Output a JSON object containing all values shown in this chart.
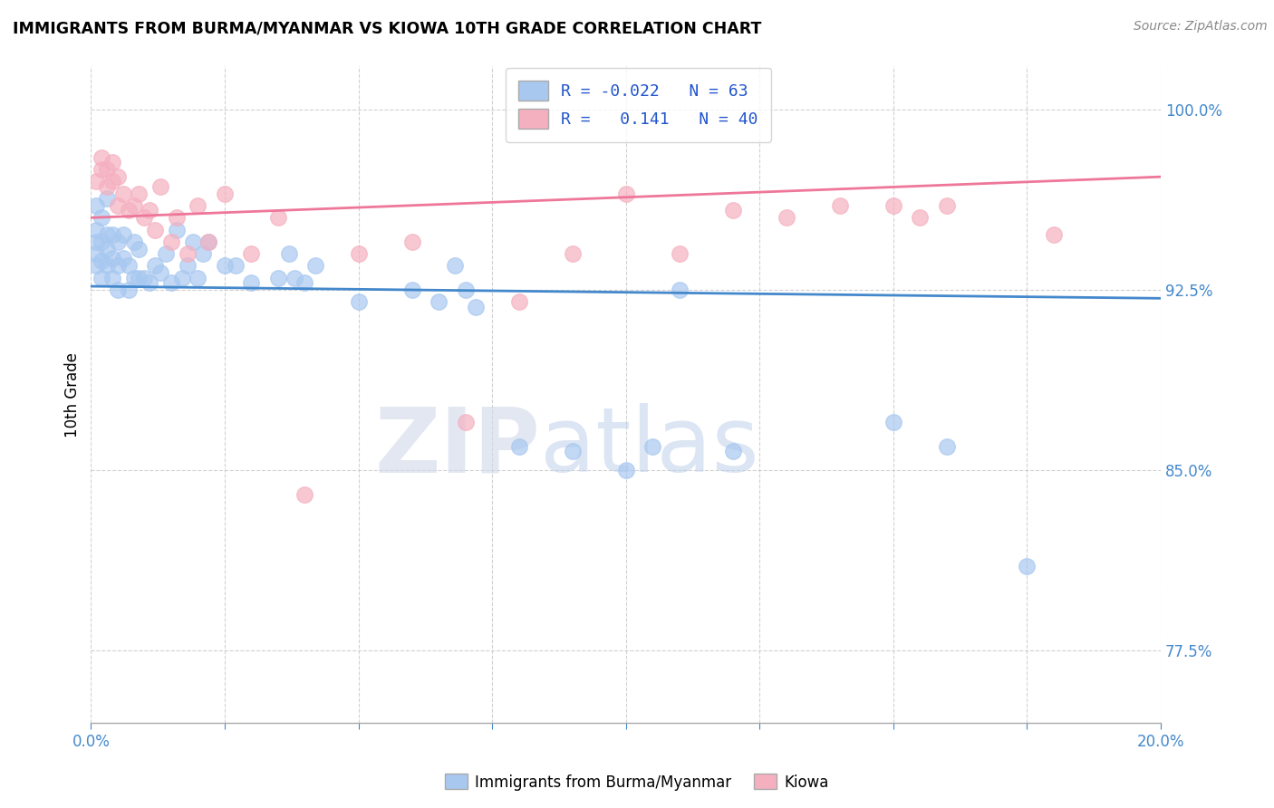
{
  "title": "IMMIGRANTS FROM BURMA/MYANMAR VS KIOWA 10TH GRADE CORRELATION CHART",
  "source": "Source: ZipAtlas.com",
  "ylabel": "10th Grade",
  "watermark_zip": "ZIP",
  "watermark_atlas": "atlas",
  "blue_R": -0.022,
  "blue_N": 63,
  "pink_R": 0.141,
  "pink_N": 40,
  "xlim": [
    0.0,
    0.2
  ],
  "ylim": [
    0.745,
    1.018
  ],
  "yticks": [
    0.775,
    0.85,
    0.925,
    1.0
  ],
  "ytick_labels": [
    "77.5%",
    "85.0%",
    "92.5%",
    "100.0%"
  ],
  "blue_color": "#a8c8f0",
  "pink_color": "#f5b0c0",
  "blue_line_color": "#4488cc",
  "pink_line_color": "#ee7799",
  "legend_text_color": "#2255cc",
  "blue_line_y0": 0.9265,
  "blue_line_y1": 0.9215,
  "pink_line_y0": 0.955,
  "pink_line_y1": 0.972,
  "blue_scatter_x": [
    0.001,
    0.001,
    0.001,
    0.001,
    0.001,
    0.002,
    0.002,
    0.002,
    0.002,
    0.003,
    0.003,
    0.003,
    0.003,
    0.004,
    0.004,
    0.004,
    0.005,
    0.005,
    0.005,
    0.006,
    0.006,
    0.007,
    0.007,
    0.008,
    0.008,
    0.009,
    0.009,
    0.01,
    0.011,
    0.012,
    0.013,
    0.014,
    0.015,
    0.016,
    0.017,
    0.018,
    0.019,
    0.02,
    0.021,
    0.022,
    0.025,
    0.027,
    0.03,
    0.035,
    0.037,
    0.038,
    0.04,
    0.042,
    0.05,
    0.06,
    0.065,
    0.068,
    0.07,
    0.072,
    0.08,
    0.09,
    0.1,
    0.105,
    0.11,
    0.12,
    0.15,
    0.16,
    0.175
  ],
  "blue_scatter_y": [
    0.935,
    0.94,
    0.945,
    0.95,
    0.96,
    0.93,
    0.937,
    0.945,
    0.955,
    0.935,
    0.942,
    0.948,
    0.963,
    0.93,
    0.938,
    0.948,
    0.925,
    0.935,
    0.945,
    0.938,
    0.948,
    0.925,
    0.935,
    0.93,
    0.945,
    0.93,
    0.942,
    0.93,
    0.928,
    0.935,
    0.932,
    0.94,
    0.928,
    0.95,
    0.93,
    0.935,
    0.945,
    0.93,
    0.94,
    0.945,
    0.935,
    0.935,
    0.928,
    0.93,
    0.94,
    0.93,
    0.928,
    0.935,
    0.92,
    0.925,
    0.92,
    0.935,
    0.925,
    0.918,
    0.86,
    0.858,
    0.85,
    0.86,
    0.925,
    0.858,
    0.87,
    0.86,
    0.81
  ],
  "pink_scatter_x": [
    0.001,
    0.002,
    0.002,
    0.003,
    0.003,
    0.004,
    0.004,
    0.005,
    0.005,
    0.006,
    0.007,
    0.008,
    0.009,
    0.01,
    0.011,
    0.012,
    0.013,
    0.015,
    0.016,
    0.018,
    0.02,
    0.022,
    0.025,
    0.03,
    0.035,
    0.04,
    0.05,
    0.06,
    0.07,
    0.08,
    0.09,
    0.1,
    0.11,
    0.12,
    0.13,
    0.14,
    0.15,
    0.155,
    0.16,
    0.18
  ],
  "pink_scatter_y": [
    0.97,
    0.975,
    0.98,
    0.968,
    0.975,
    0.97,
    0.978,
    0.96,
    0.972,
    0.965,
    0.958,
    0.96,
    0.965,
    0.955,
    0.958,
    0.95,
    0.968,
    0.945,
    0.955,
    0.94,
    0.96,
    0.945,
    0.965,
    0.94,
    0.955,
    0.84,
    0.94,
    0.945,
    0.87,
    0.92,
    0.94,
    0.965,
    0.94,
    0.958,
    0.955,
    0.96,
    0.96,
    0.955,
    0.96,
    0.948
  ]
}
